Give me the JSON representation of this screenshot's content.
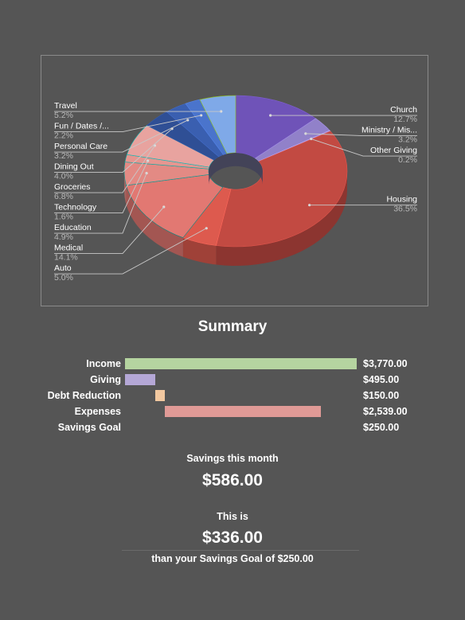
{
  "chart_data": [
    {
      "type": "pie",
      "variant": "3d-donut",
      "slices": [
        {
          "label": "Church",
          "value": 12.7,
          "color": "#6f53b8"
        },
        {
          "label": "Ministry / Mis...",
          "value": 3.2,
          "color": "#9181c9"
        },
        {
          "label": "Other Giving",
          "value": 0.2,
          "color": "#a694d6"
        },
        {
          "label": "Housing",
          "value": 36.5,
          "color": "#c24a42"
        },
        {
          "label": "Auto",
          "value": 5.0,
          "color": "#dd5a4e"
        },
        {
          "label": "Medical",
          "value": 14.1,
          "color": "#e27872"
        },
        {
          "label": "Education",
          "value": 4.9,
          "color": "#e38a84"
        },
        {
          "label": "Technology",
          "value": 1.6,
          "color": "#e69690"
        },
        {
          "label": "Groceries",
          "value": 6.8,
          "color": "#e8a39f"
        },
        {
          "label": "Dining Out",
          "value": 4.0,
          "color": "#2f4f95"
        },
        {
          "label": "Personal Care",
          "value": 3.2,
          "color": "#3a5fb0"
        },
        {
          "label": "Fun / Dates /...",
          "value": 2.2,
          "color": "#4a74cc"
        },
        {
          "label": "Travel",
          "value": 5.2,
          "color": "#7fa9e8"
        }
      ]
    },
    {
      "type": "bar",
      "orientation": "horizontal",
      "title": "Summary",
      "categories": [
        "Income",
        "Giving",
        "Debt Reduction",
        "Expenses",
        "Savings Goal"
      ],
      "values": [
        3770.0,
        495.0,
        150.0,
        2539.0,
        250.0
      ],
      "value_labels": [
        "$3,770.00",
        "$495.00",
        "$150.00",
        "$2,539.00",
        "$250.00"
      ],
      "colors": [
        "#b5d4a0",
        "#b4a7d6",
        "#f2c8a0",
        "#e09a96",
        null
      ]
    }
  ],
  "savings": {
    "month_label": "Savings this month",
    "month_amount": "$586.00",
    "this_is": "This is",
    "diff_amount": "$336.00",
    "goal_text": "than your Savings Goal of $250.00"
  }
}
